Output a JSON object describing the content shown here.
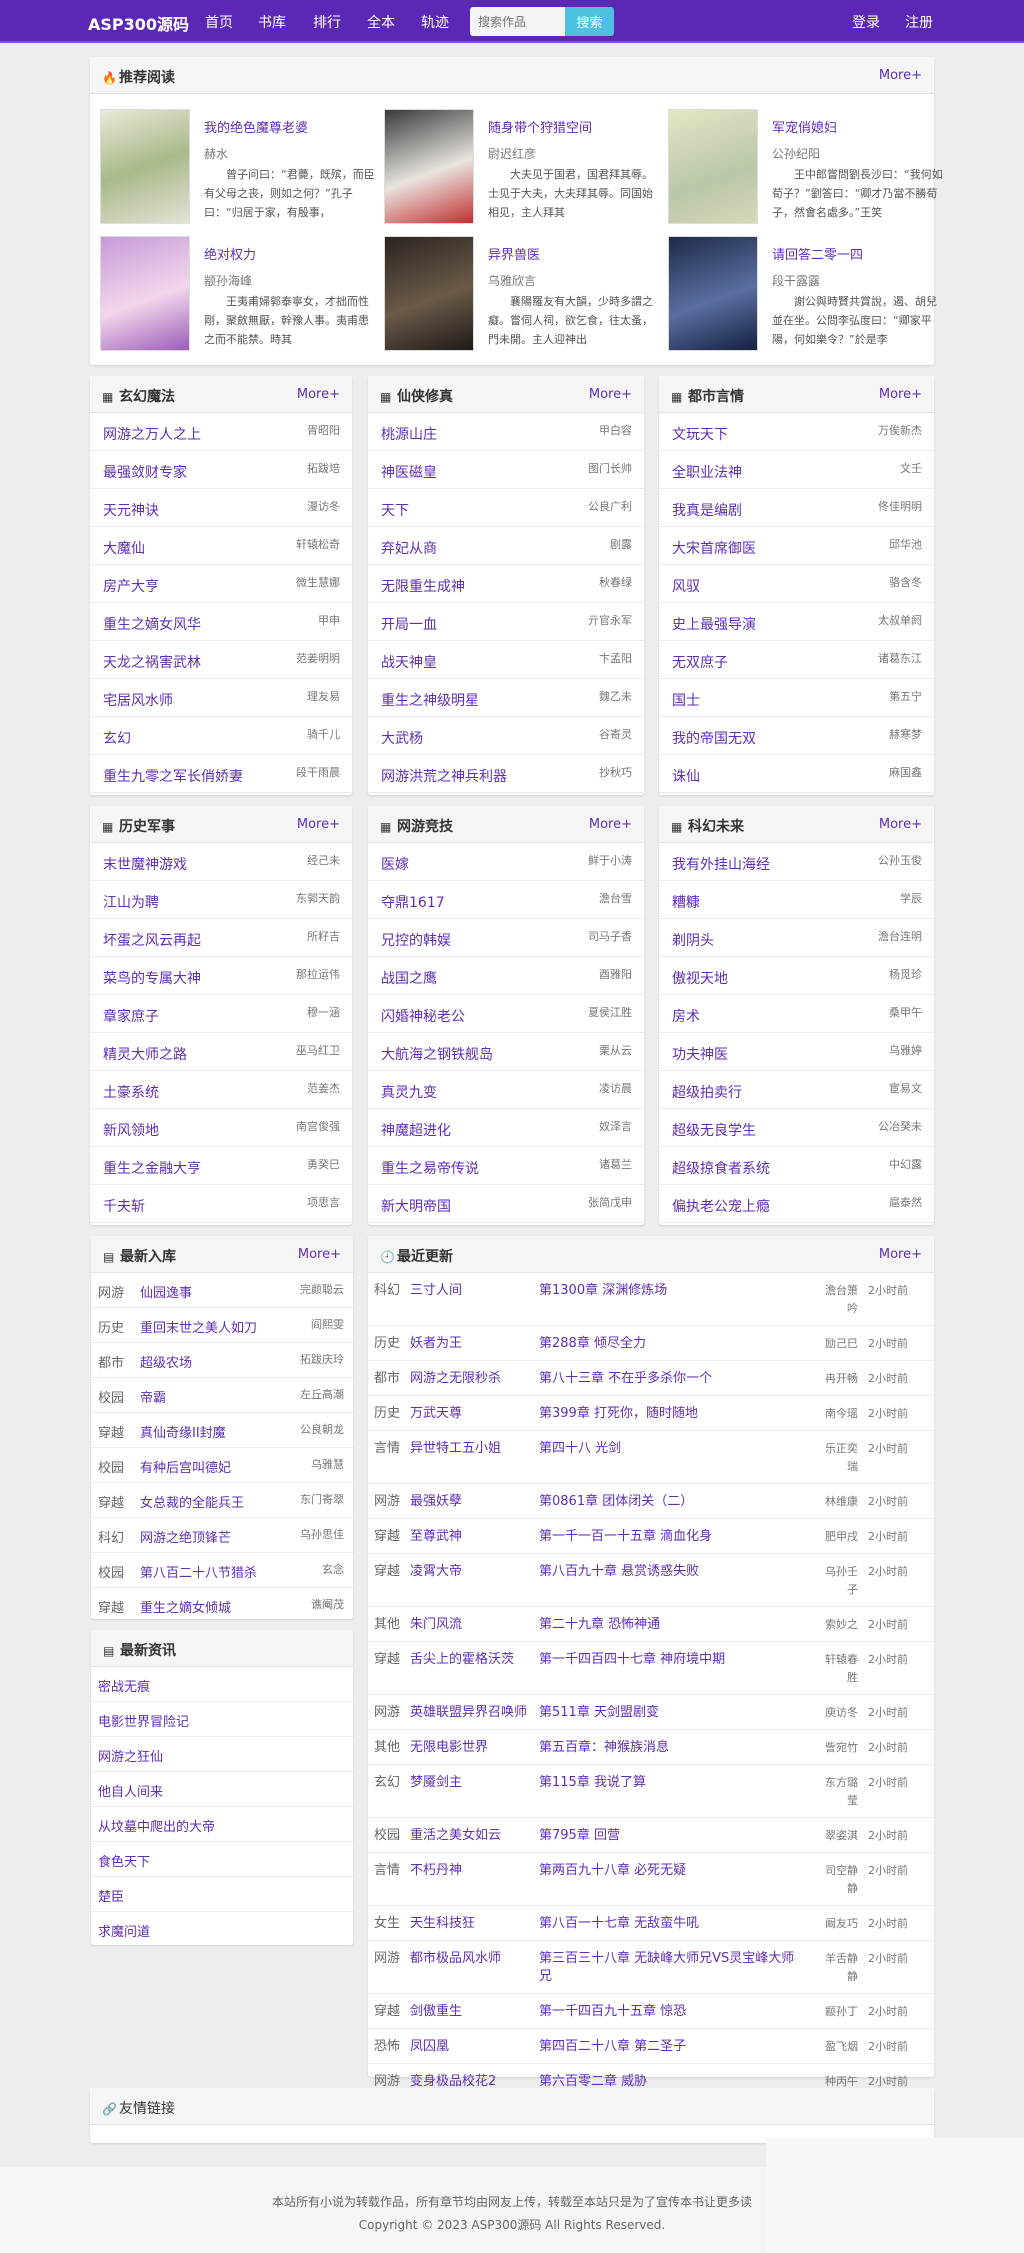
{
  "nav": {
    "logo": "ASP300源码",
    "items": [
      "首页",
      "书库",
      "排行",
      "全本",
      "轨迹"
    ],
    "search_placeholder": "搜索作品",
    "search_button": "搜索",
    "login": "登录",
    "register": "注册"
  },
  "colors": {
    "nav": "#5a28b4",
    "link": "#5e2fb3",
    "search_button": "#4fc0e0"
  },
  "more": "More+",
  "recommend": {
    "title": "推荐阅读",
    "icon": "fire-icon",
    "books": [
      {
        "title": "我的绝色魔尊老婆",
        "author": "赫水",
        "intro": "曾子问曰：“君薨，既殡，而臣有父母之丧，则如之何？”孔子曰：“归居于家，有殷事，"
      },
      {
        "title": "随身带个狩猎空间",
        "author": "尉迟红彦",
        "intro": "大夫见于国君，国君拜其辱。士见于大夫，大夫拜其辱。同国始相见，主人拜其"
      },
      {
        "title": "军宠俏媳妇",
        "author": "公孙纪阳",
        "intro": "王中郎嘗問劉長沙曰：“我何如荀子？”劉答曰：“卿才乃當不勝荀子，然會名處多。”王笑"
      },
      {
        "title": "绝对权力",
        "author": "颛孙海峰",
        "intro": "王夷甫婦郭泰寧女，才拙而性剛，聚斂無厭，幹豫人事。夷甫患之而不能禁。時其"
      },
      {
        "title": "异界兽医",
        "author": "乌雅欣言",
        "intro": "襄陽羅友有大韻，少時多謂之癡。嘗伺人祠，欲乞食，往太蚤，門未開。主人迎神出"
      },
      {
        "title": "请回答二零一四",
        "author": "段干露露",
        "intro": "謝公與時賢共賞說，遏、胡兒並在坐。公問李弘度曰：“卿家平陽，何如樂令？”於是李"
      }
    ]
  },
  "categories": [
    {
      "title": "玄幻魔法",
      "items": [
        [
          "网游之万人之上",
          "胥昭阳"
        ],
        [
          "最强敛财专家",
          "拓跋培"
        ],
        [
          "天元神诀",
          "漫访冬"
        ],
        [
          "大魔仙",
          "轩辕松奇"
        ],
        [
          "房产大亨",
          "微生慧娜"
        ],
        [
          "重生之嫡女风华",
          "甲申"
        ],
        [
          "天龙之祸害武林",
          "范姜明明"
        ],
        [
          "宅居风水师",
          "理友易"
        ],
        [
          "玄幻",
          "骑千儿"
        ],
        [
          "重生九零之军长俏娇妻",
          "段干雨晨"
        ]
      ]
    },
    {
      "title": "仙侠修真",
      "items": [
        [
          "桃源山庄",
          "甲白容"
        ],
        [
          "神医磁皇",
          "图门长帅"
        ],
        [
          "天下",
          "公良广利"
        ],
        [
          "弃妃从商",
          "剧露"
        ],
        [
          "无限重生成神",
          "秋春绿"
        ],
        [
          "开局一血",
          "亓官永军"
        ],
        [
          "战天神皇",
          "卞孟阳"
        ],
        [
          "重生之神级明星",
          "魏乙未"
        ],
        [
          "大武杨",
          "谷寄灵"
        ],
        [
          "网游洪荒之神兵利器",
          "抄秋巧"
        ]
      ]
    },
    {
      "title": "都市言情",
      "items": [
        [
          "文玩天下",
          "万俟新杰"
        ],
        [
          "全职业法神",
          "文壬"
        ],
        [
          "我真是编剧",
          "佟佳明明"
        ],
        [
          "大宋首席御医",
          "邱华池"
        ],
        [
          "风驭",
          "骆含冬"
        ],
        [
          "史上最强导演",
          "太叔单阏"
        ],
        [
          "无双庶子",
          "诸葛东江"
        ],
        [
          "国士",
          "第五宁"
        ],
        [
          "我的帝国无双",
          "赫寒梦"
        ],
        [
          "诛仙",
          "麻国鑫"
        ]
      ]
    },
    {
      "title": "历史军事",
      "items": [
        [
          "末世魔神游戏",
          "经己未"
        ],
        [
          "江山为聘",
          "东郭天韵"
        ],
        [
          "坏蛋之风云再起",
          "所籽吉"
        ],
        [
          "菜鸟的专属大神",
          "那拉运伟"
        ],
        [
          "章家庶子",
          "穆一涵"
        ],
        [
          "精灵大师之路",
          "巫马红卫"
        ],
        [
          "土豪系统",
          "范姜杰"
        ],
        [
          "新风领地",
          "南宫俊强"
        ],
        [
          "重生之金融大亨",
          "勇癸巳"
        ],
        [
          "千夫斩",
          "项思言"
        ]
      ]
    },
    {
      "title": "网游竞技",
      "items": [
        [
          "医嫁",
          "鲜于小涛"
        ],
        [
          "夺鼎1617",
          "澹台雪"
        ],
        [
          "兄控的韩娱",
          "司马子香"
        ],
        [
          "战国之鹰",
          "酉雅阳"
        ],
        [
          "闪婚神秘老公",
          "夏侯江胜"
        ],
        [
          "大航海之钢铁舰岛",
          "栗从云"
        ],
        [
          "真灵九变",
          "凌访晨"
        ],
        [
          "神魔超进化",
          "奴泽言"
        ],
        [
          "重生之易帝传说",
          "诸葛兰"
        ],
        [
          "新大明帝国",
          "张简戊申"
        ]
      ]
    },
    {
      "title": "科幻未来",
      "items": [
        [
          "我有外挂山海经",
          "公孙玉俊"
        ],
        [
          "糟糠",
          "学辰"
        ],
        [
          "剃阴头",
          "澹台连明"
        ],
        [
          "傲视天地",
          "杨觅珍"
        ],
        [
          "房术",
          "桑甲午"
        ],
        [
          "功夫神医",
          "乌雅婷"
        ],
        [
          "超级拍卖行",
          "宦易文"
        ],
        [
          "超级无良学生",
          "公冶癸未"
        ],
        [
          "超级掠食者系统",
          "中幻露"
        ],
        [
          "偏执老公宠上瘾",
          "扈泰然"
        ]
      ]
    }
  ],
  "newest": {
    "title": "最新入库",
    "items": [
      [
        "网游",
        "仙园逸事",
        "完颜聪云"
      ],
      [
        "历史",
        "重回末世之美人如刀",
        "阎熙雯"
      ],
      [
        "都市",
        "超级农场",
        "拓跋庆玲"
      ],
      [
        "校园",
        "帝霸",
        "左丘高潮"
      ],
      [
        "穿越",
        "真仙奇缘II封魔",
        "公良朝龙"
      ],
      [
        "校园",
        "有种后宫叫德妃",
        "乌雅慧"
      ],
      [
        "穿越",
        "女总裁的全能兵王",
        "东门寄翠"
      ],
      [
        "科幻",
        "网游之绝顶锋芒",
        "乌孙思佳"
      ],
      [
        "校园",
        "第八百二十八节猎杀",
        "玄念"
      ],
      [
        "穿越",
        "重生之嫡女倾城",
        "谯阉茂"
      ]
    ]
  },
  "news": {
    "title": "最新资讯",
    "items": [
      "密战无痕",
      "电影世界冒险记",
      "网游之狂仙",
      "他自人间来",
      "从坟墓中爬出的大帝",
      "食色天下",
      "楚臣",
      "求魔问道"
    ]
  },
  "updates": {
    "title": "最近更新",
    "items": [
      [
        "科幻",
        "三寸人间",
        "第1300章 深渊修炼场",
        "澹台箫吟",
        "2小时前"
      ],
      [
        "历史",
        "妖者为王",
        "第288章 倾尽全力",
        "励己巳",
        "2小时前"
      ],
      [
        "都市",
        "网游之无限秒杀",
        "第八十三章 不在乎多杀你一个",
        "冉开畅",
        "2小时前"
      ],
      [
        "历史",
        "万武天尊",
        "第399章 打死你，随时随地",
        "南今瑶",
        "2小时前"
      ],
      [
        "言情",
        "异世特工五小姐",
        "第四十八 光剑",
        "乐正奕瑞",
        "2小时前"
      ],
      [
        "网游",
        "最强妖孽",
        "第0861章 团体闭关（二）",
        "林维康",
        "2小时前"
      ],
      [
        "穿越",
        "至尊武神",
        "第一千一百一十五章 滴血化身",
        "肥甲戌",
        "2小时前"
      ],
      [
        "穿越",
        "凌霄大帝",
        "第八百九十章 悬赏诱惑失败",
        "乌孙壬子",
        "2小时前"
      ],
      [
        "其他",
        "朱门风流",
        "第二十九章 恐怖神通",
        "索妙之",
        "2小时前"
      ],
      [
        "穿越",
        "舌尖上的霍格沃茨",
        "第一千四百四十七章 神府境中期",
        "轩辕春胜",
        "2小时前"
      ],
      [
        "网游",
        "英雄联盟异界召唤师",
        "第511章 天剑盟剧变",
        "庾访冬",
        "2小时前"
      ],
      [
        "其他",
        "无限电影世界",
        "第五百章：神猴族消息",
        "訾宛竹",
        "2小时前"
      ],
      [
        "玄幻",
        "梦魇剑主",
        "第115章 我说了算",
        "东方璐莹",
        "2小时前"
      ],
      [
        "校园",
        "重活之美女如云",
        "第795章 回营",
        "翠姿淇",
        "2小时前"
      ],
      [
        "言情",
        "不朽丹神",
        "第两百九十八章 必死无疑",
        "司空静静",
        "2小时前"
      ],
      [
        "女生",
        "天生科技狂",
        "第八百一十七章 无敌蛮牛吼",
        "阚友巧",
        "2小时前"
      ],
      [
        "网游",
        "都市极品风水师",
        "第三百三十八章 无缺峰大师兄VS灵宝峰大师兄",
        "羊舌静静",
        "2小时前"
      ],
      [
        "穿越",
        "剑傲重生",
        "第一千四百九十五章 惊恐",
        "颛孙丁",
        "2小时前"
      ],
      [
        "恐怖",
        "凤囚凰",
        "第四百二十八章 第二圣子",
        "盈飞烟",
        "2小时前"
      ],
      [
        "网游",
        "变身极品校花2",
        "第六百零二章 威胁",
        "种丙午",
        "2小时前"
      ]
    ]
  },
  "links": {
    "title": "友情链接"
  },
  "footer": {
    "notice": "本站所有小说为转载作品，所有章节均由网友上传，转载至本站只是为了宣传本书让更多读",
    "copyright": "Copyright © 2023 ASP300源码 All Rights Reserved."
  }
}
